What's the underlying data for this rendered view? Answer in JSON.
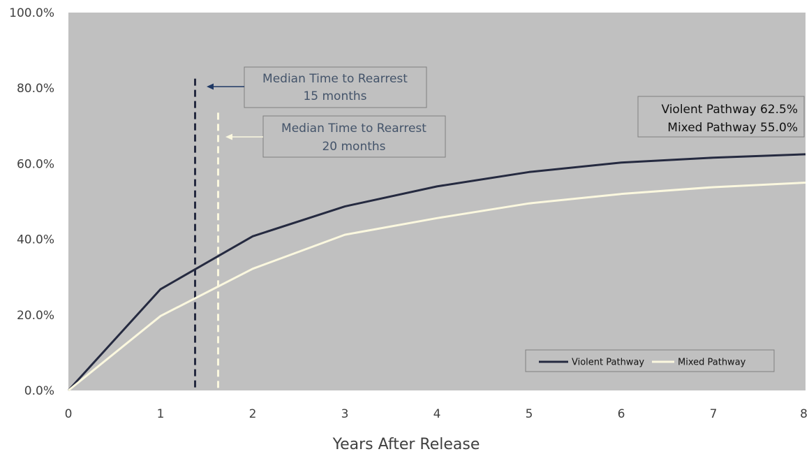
{
  "chart_data": {
    "type": "line",
    "xlabel": "Years After Release",
    "ylabel": "",
    "x": [
      0,
      1,
      2,
      3,
      4,
      5,
      6,
      7,
      8
    ],
    "xlim": [
      0,
      8
    ],
    "ylim": [
      0,
      100
    ],
    "y_ticks": [
      "0.0%",
      "20.0%",
      "40.0%",
      "60.0%",
      "80.0%",
      "100.0%"
    ],
    "x_ticks": [
      "0",
      "1",
      "2",
      "3",
      "4",
      "5",
      "6",
      "7",
      "8"
    ],
    "grid": false,
    "legend_position": "bottom-right",
    "plot_background": "#c0c0c0",
    "series": [
      {
        "name": "Violent Pathway",
        "color": "#252a40",
        "values": [
          0,
          26.8,
          40.8,
          48.7,
          54.0,
          57.8,
          60.3,
          61.6,
          62.5
        ]
      },
      {
        "name": "Mixed Pathway",
        "color": "#fbf8df",
        "values": [
          0,
          19.7,
          32.2,
          41.2,
          45.6,
          49.5,
          52.0,
          53.8,
          55.0
        ]
      }
    ],
    "reference_lines": [
      {
        "x": 1.375,
        "top": 82.5,
        "color": "#252a40",
        "style": "dashed"
      },
      {
        "x": 1.625,
        "top": 73.5,
        "color": "#fbf8df",
        "style": "dashed"
      }
    ],
    "annotations": [
      {
        "lines": [
          "Median Time to Rearrest",
          "15 months"
        ],
        "arrow_color": "#1f3864",
        "line_ref": 0
      },
      {
        "lines": [
          "Median Time to Rearrest",
          "20 months"
        ],
        "arrow_color": "#fbf8df",
        "line_ref": 1
      }
    ],
    "end_labels": [
      "Violent Pathway 62.5%",
      "Mixed Pathway 55.0%"
    ]
  }
}
